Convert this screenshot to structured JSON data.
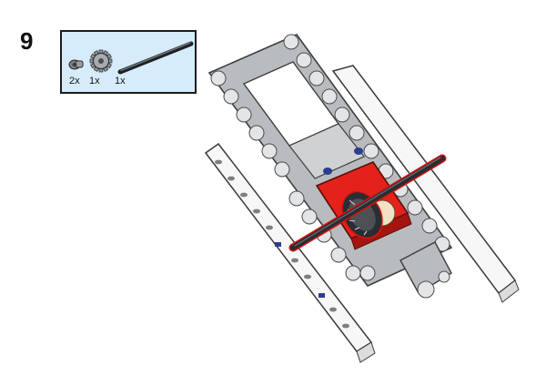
{
  "step": {
    "number": "9"
  },
  "parts_list": {
    "parts": [
      {
        "icon": "pin-icon",
        "quantity": "2x"
      },
      {
        "icon": "gear-icon",
        "quantity": "1x"
      },
      {
        "icon": "axle-icon",
        "quantity": "1x"
      }
    ]
  },
  "colors": {
    "parts_box_bg": "#d6ecfb",
    "frame_gray": "#b9bcbf",
    "motor_red": "#e3231b",
    "axle_black": "#2a2d31",
    "highlight_outline": "#d81414",
    "pin_blue": "#2b3f8f"
  }
}
